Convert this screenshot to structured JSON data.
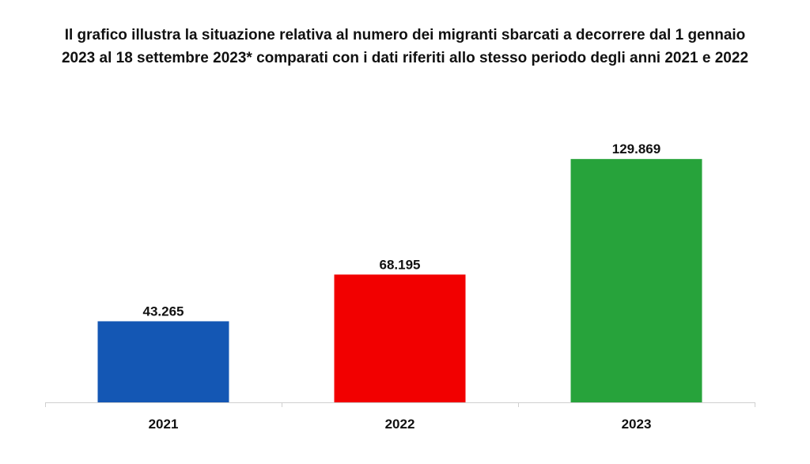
{
  "chart_data": {
    "type": "bar",
    "title": "Il grafico illustra la situazione relativa al numero dei migranti sbarcati a decorrere dal 1 gennaio 2023 al 18 settembre 2023* comparati con i dati riferiti allo stesso periodo degli anni 2021 e 2022",
    "categories": [
      "2021",
      "2022",
      "2023"
    ],
    "values": [
      43265,
      68195,
      129869
    ],
    "value_labels": [
      "43.265",
      "68.195",
      "129.869"
    ],
    "colors": [
      "#1457b4",
      "#f20000",
      "#27a33b"
    ],
    "ylim": [
      0,
      135000
    ],
    "xlabel": "",
    "ylabel": "",
    "grid": false,
    "legend": "none"
  }
}
